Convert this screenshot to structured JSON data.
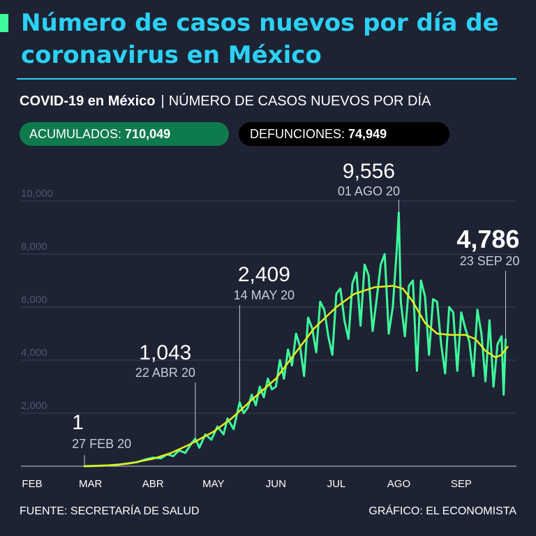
{
  "header": {
    "title": "Número de casos nuevos por día de coronavirus en México",
    "subtitle_bold": "COVID-19 en México",
    "subtitle_sep": "|",
    "subtitle_rest": "NÚMERO DE CASOS NUEVOS POR DÍA"
  },
  "stats": {
    "accumulated_label": "ACUMULADOS:",
    "accumulated_value": "710,049",
    "deaths_label": "DEFUNCIONES:",
    "deaths_value": "74,949"
  },
  "footer": {
    "source": "FUENTE: SECRETARÍA DE SALUD",
    "credit": "GRÁFICO: EL ECONOMISTA"
  },
  "colors": {
    "background": "#1e2334",
    "title": "#2bd1f6",
    "daily_line": "#3dfb9b",
    "average_line": "#e6f01c",
    "accumulated_pill": "#0f7a4e",
    "deaths_pill": "#000000",
    "annotation_gray": "#c8ccd6"
  },
  "chart_data": {
    "type": "line",
    "xlabel": "",
    "ylabel": "",
    "x_domain": [
      "2020-02-01",
      "2020-09-27"
    ],
    "ylim": [
      0,
      10000
    ],
    "yticks": [
      {
        "value": 2000,
        "label": "2,000"
      },
      {
        "value": 4000,
        "label": "4,000"
      },
      {
        "value": 6000,
        "label": "6,000"
      },
      {
        "value": 8000,
        "label": "8,000"
      },
      {
        "value": 10000,
        "label": "10,000"
      }
    ],
    "xticks": [
      {
        "date": "2020-02-01",
        "label": "FEB"
      },
      {
        "date": "2020-03-01",
        "label": "MAR"
      },
      {
        "date": "2020-04-01",
        "label": "ABR"
      },
      {
        "date": "2020-05-01",
        "label": "MAY"
      },
      {
        "date": "2020-06-01",
        "label": "JUN"
      },
      {
        "date": "2020-07-01",
        "label": "JUL"
      },
      {
        "date": "2020-08-01",
        "label": "AGO"
      },
      {
        "date": "2020-09-01",
        "label": "SEP"
      }
    ],
    "grid": true,
    "legend": "none",
    "series": [
      {
        "role": "daily",
        "points": [
          [
            "2020-02-27",
            1
          ],
          [
            "2020-03-05",
            15
          ],
          [
            "2020-03-10",
            30
          ],
          [
            "2020-03-15",
            60
          ],
          [
            "2020-03-20",
            110
          ],
          [
            "2020-03-24",
            150
          ],
          [
            "2020-03-28",
            250
          ],
          [
            "2020-04-01",
            320
          ],
          [
            "2020-04-05",
            300
          ],
          [
            "2020-04-08",
            450
          ],
          [
            "2020-04-11",
            380
          ],
          [
            "2020-04-14",
            600
          ],
          [
            "2020-04-17",
            500
          ],
          [
            "2020-04-20",
            850
          ],
          [
            "2020-04-22",
            1043
          ],
          [
            "2020-04-24",
            700
          ],
          [
            "2020-04-27",
            1200
          ],
          [
            "2020-04-30",
            1000
          ],
          [
            "2020-05-03",
            1500
          ],
          [
            "2020-05-06",
            1200
          ],
          [
            "2020-05-08",
            1800
          ],
          [
            "2020-05-11",
            1400
          ],
          [
            "2020-05-14",
            2409
          ],
          [
            "2020-05-16",
            2000
          ],
          [
            "2020-05-18",
            2200
          ],
          [
            "2020-05-20",
            2700
          ],
          [
            "2020-05-22",
            2300
          ],
          [
            "2020-05-24",
            3000
          ],
          [
            "2020-05-26",
            2600
          ],
          [
            "2020-05-28",
            3300
          ],
          [
            "2020-05-30",
            2900
          ],
          [
            "2020-06-01",
            3000
          ],
          [
            "2020-06-03",
            4000
          ],
          [
            "2020-06-05",
            3300
          ],
          [
            "2020-06-07",
            4400
          ],
          [
            "2020-06-09",
            3800
          ],
          [
            "2020-06-11",
            5000
          ],
          [
            "2020-06-13",
            4500
          ],
          [
            "2020-06-15",
            3400
          ],
          [
            "2020-06-17",
            5600
          ],
          [
            "2020-06-19",
            5200
          ],
          [
            "2020-06-21",
            4300
          ],
          [
            "2020-06-23",
            6200
          ],
          [
            "2020-06-25",
            5900
          ],
          [
            "2020-06-27",
            4900
          ],
          [
            "2020-06-29",
            4200
          ],
          [
            "2020-07-01",
            6500
          ],
          [
            "2020-07-03",
            6700
          ],
          [
            "2020-07-05",
            5500
          ],
          [
            "2020-07-07",
            4800
          ],
          [
            "2020-07-09",
            6900
          ],
          [
            "2020-07-11",
            7300
          ],
          [
            "2020-07-13",
            5300
          ],
          [
            "2020-07-15",
            7600
          ],
          [
            "2020-07-17",
            7200
          ],
          [
            "2020-07-19",
            5100
          ],
          [
            "2020-07-21",
            6300
          ],
          [
            "2020-07-23",
            7600
          ],
          [
            "2020-07-25",
            8000
          ],
          [
            "2020-07-27",
            5000
          ],
          [
            "2020-07-29",
            6000
          ],
          [
            "2020-07-31",
            8200
          ],
          [
            "2020-08-01",
            9556
          ],
          [
            "2020-08-02",
            6200
          ],
          [
            "2020-08-04",
            4900
          ],
          [
            "2020-08-06",
            6800
          ],
          [
            "2020-08-08",
            7000
          ],
          [
            "2020-08-10",
            3600
          ],
          [
            "2020-08-12",
            7000
          ],
          [
            "2020-08-14",
            6400
          ],
          [
            "2020-08-16",
            4200
          ],
          [
            "2020-08-18",
            6300
          ],
          [
            "2020-08-20",
            6200
          ],
          [
            "2020-08-22",
            4600
          ],
          [
            "2020-08-24",
            3500
          ],
          [
            "2020-08-26",
            6000
          ],
          [
            "2020-08-28",
            5800
          ],
          [
            "2020-08-30",
            3600
          ],
          [
            "2020-09-01",
            5800
          ],
          [
            "2020-09-03",
            5200
          ],
          [
            "2020-09-05",
            4700
          ],
          [
            "2020-09-07",
            3400
          ],
          [
            "2020-09-09",
            5900
          ],
          [
            "2020-09-11",
            5000
          ],
          [
            "2020-09-13",
            3200
          ],
          [
            "2020-09-15",
            5500
          ],
          [
            "2020-09-17",
            3000
          ],
          [
            "2020-09-19",
            4600
          ],
          [
            "2020-09-21",
            4900
          ],
          [
            "2020-09-22",
            2700
          ],
          [
            "2020-09-23",
            4786
          ]
        ]
      },
      {
        "role": "moving_average",
        "points": [
          [
            "2020-02-27",
            1
          ],
          [
            "2020-03-10",
            30
          ],
          [
            "2020-03-20",
            100
          ],
          [
            "2020-04-01",
            280
          ],
          [
            "2020-04-10",
            500
          ],
          [
            "2020-04-20",
            850
          ],
          [
            "2020-05-01",
            1300
          ],
          [
            "2020-05-10",
            1800
          ],
          [
            "2020-05-20",
            2500
          ],
          [
            "2020-06-01",
            3300
          ],
          [
            "2020-06-10",
            4200
          ],
          [
            "2020-06-20",
            5200
          ],
          [
            "2020-07-01",
            6000
          ],
          [
            "2020-07-10",
            6500
          ],
          [
            "2020-07-20",
            6750
          ],
          [
            "2020-07-29",
            6800
          ],
          [
            "2020-08-03",
            6700
          ],
          [
            "2020-08-08",
            6200
          ],
          [
            "2020-08-14",
            5400
          ],
          [
            "2020-08-20",
            5000
          ],
          [
            "2020-08-27",
            4950
          ],
          [
            "2020-09-03",
            4950
          ],
          [
            "2020-09-08",
            4800
          ],
          [
            "2020-09-13",
            4350
          ],
          [
            "2020-09-18",
            4100
          ],
          [
            "2020-09-21",
            4200
          ],
          [
            "2020-09-24",
            4500
          ]
        ]
      }
    ],
    "annotations": [
      {
        "date": "2020-02-27",
        "value": 1,
        "value_label": "1",
        "date_label": "27 FEB 20",
        "emphasis": false
      },
      {
        "date": "2020-04-22",
        "value": 1043,
        "value_label": "1,043",
        "date_label": "22 ABR 20",
        "emphasis": false
      },
      {
        "date": "2020-05-14",
        "value": 2409,
        "value_label": "2,409",
        "date_label": "14 MAY 20",
        "emphasis": false
      },
      {
        "date": "2020-08-01",
        "value": 9556,
        "value_label": "9,556",
        "date_label": "01 AGO 20",
        "emphasis": false
      },
      {
        "date": "2020-09-23",
        "value": 4786,
        "value_label": "4,786",
        "date_label": "23 SEP 20",
        "emphasis": true
      }
    ]
  }
}
